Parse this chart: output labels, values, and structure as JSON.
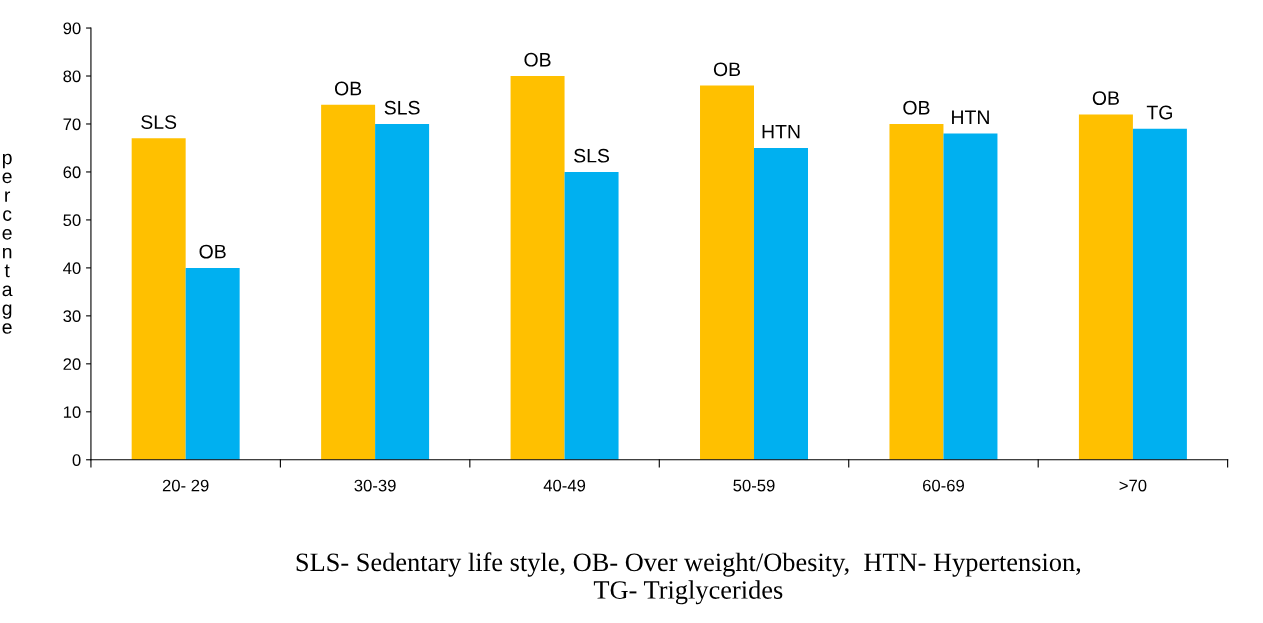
{
  "chart_data": {
    "type": "bar",
    "ylabel": "percentage",
    "categories": [
      "20- 29",
      "30-39",
      "40-49",
      "50-59",
      "60-69",
      ">70"
    ],
    "series": [
      {
        "color": "#ffc000",
        "values": [
          67,
          74,
          80,
          78,
          70,
          72
        ],
        "value_labels": [
          "SLS",
          "OB",
          "OB",
          "OB",
          "OB",
          "OB"
        ]
      },
      {
        "color": "#00b0f0",
        "values": [
          40,
          70,
          60,
          65,
          68,
          69
        ],
        "value_labels": [
          "OB",
          "SLS",
          "SLS",
          "HTN",
          "HTN",
          "TG"
        ]
      }
    ],
    "ylim": [
      0,
      90
    ],
    "yticks": [
      0,
      10,
      20,
      30,
      40,
      50,
      60,
      70,
      80,
      90
    ],
    "grid": false,
    "legend": false,
    "annotations": [
      "SLS- Sedentary life style, OB- Over weight/Obesity,  HTN- Hypertension,\nTG- Triglycerides"
    ]
  }
}
